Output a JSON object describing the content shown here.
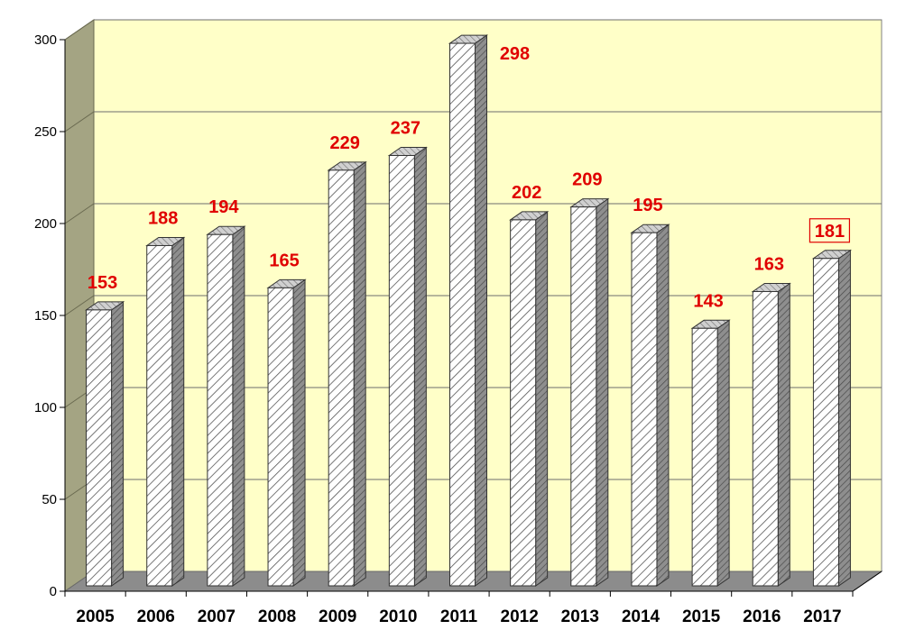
{
  "chart_data": {
    "type": "bar",
    "categories": [
      "2005",
      "2006",
      "2007",
      "2008",
      "2009",
      "2010",
      "2011",
      "2012",
      "2013",
      "2014",
      "2015",
      "2016",
      "2017"
    ],
    "values": [
      153,
      188,
      194,
      165,
      229,
      237,
      298,
      202,
      209,
      195,
      143,
      163,
      181
    ],
    "data_labels": [
      "153",
      "188",
      "194",
      "165",
      "229",
      "237",
      "298",
      "202",
      "209",
      "195",
      "143",
      "163",
      "181"
    ],
    "highlighted_label": "181",
    "ylim": [
      0,
      300
    ],
    "yticks": [
      0,
      50,
      100,
      150,
      200,
      250,
      300
    ],
    "ytick_labels": [
      "0",
      "50",
      "100",
      "150",
      "200",
      "250",
      "300"
    ],
    "grid": true,
    "style": "3d-hatched",
    "colors": {
      "plot_background": "#ffffc8",
      "left_wall": "#a4a483",
      "floor": "#8c8c8c",
      "gridline": "#6e6e6e",
      "data_label": "#e00000",
      "bar_front": "#ffffff",
      "bar_hatch": "#555555",
      "bar_side": "#8e8e8e",
      "bar_top": "#c8c8c8"
    },
    "title": "",
    "xlabel": "",
    "ylabel": ""
  }
}
